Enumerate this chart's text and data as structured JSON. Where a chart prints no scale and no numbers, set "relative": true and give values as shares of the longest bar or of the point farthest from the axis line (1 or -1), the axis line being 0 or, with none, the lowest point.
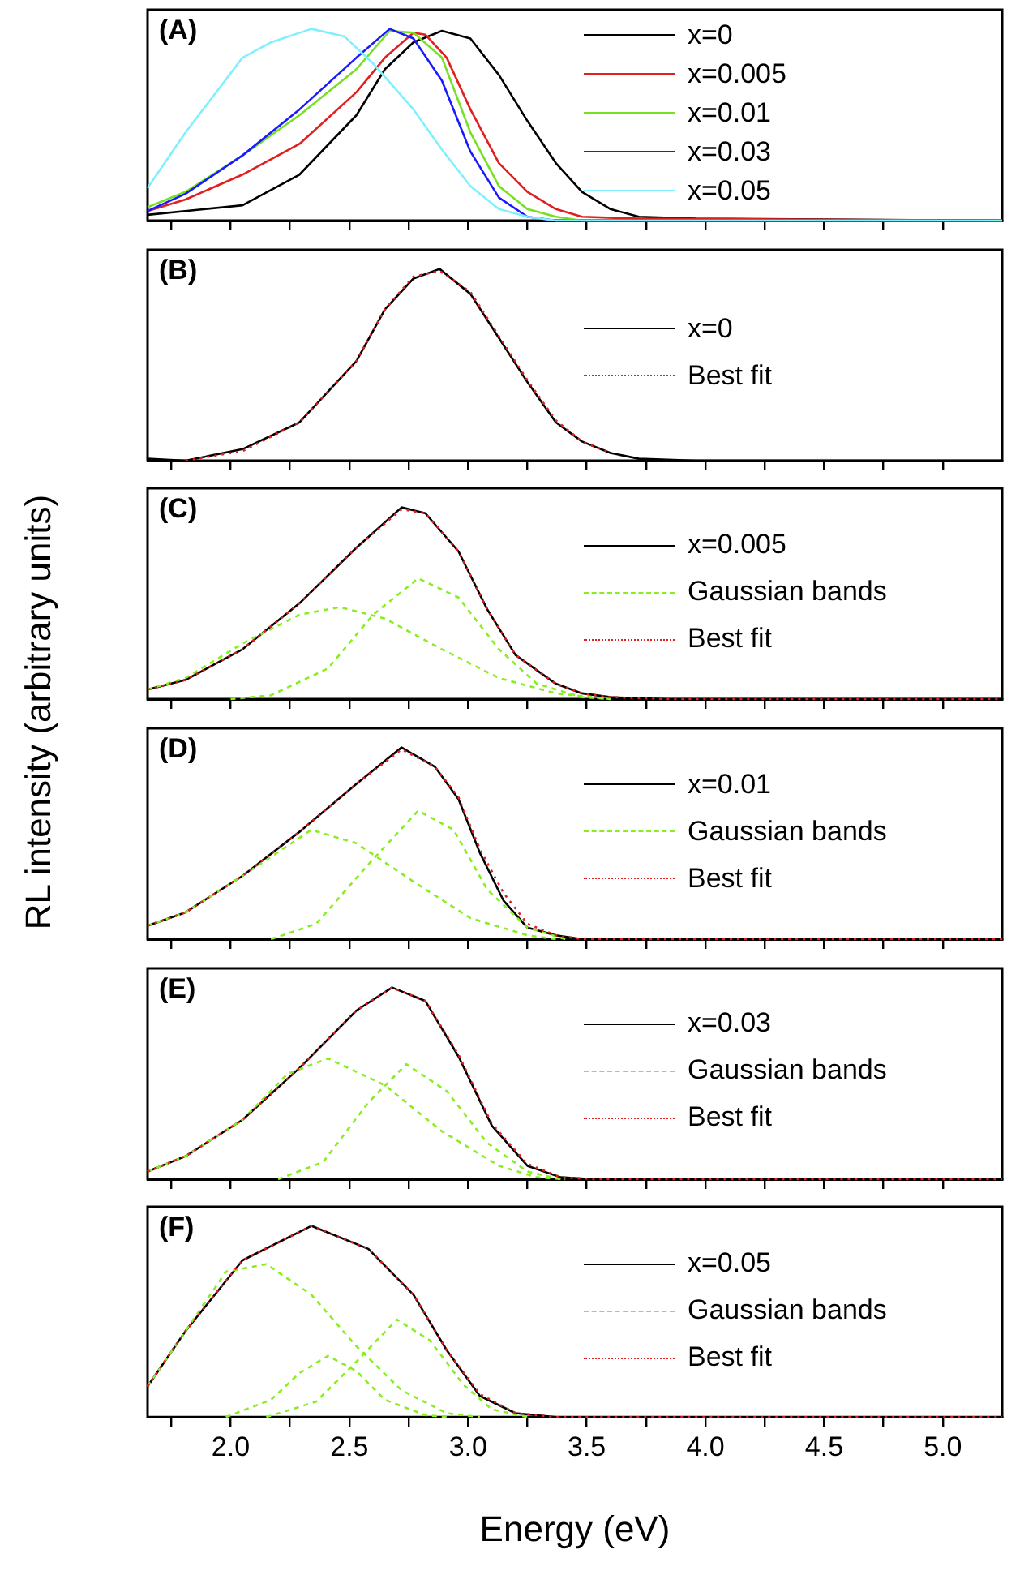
{
  "chart_data": [
    {
      "type": "line",
      "title": "(A)",
      "relative": true,
      "legend": "top right",
      "tick_labels": false,
      "xlim": [
        1.65,
        5.25
      ],
      "xticks": [
        1.75,
        2,
        2.25,
        2.5,
        2.75,
        3,
        3.25,
        3.5,
        3.75,
        4,
        4.25,
        4.5,
        4.75,
        5
      ],
      "series": [
        {
          "name": "x=0",
          "color": "#000000",
          "x": [
            1.65,
            2.05,
            2.29,
            2.53,
            2.65,
            2.77,
            2.89,
            3.01,
            3.13,
            3.25,
            3.37,
            3.48,
            3.6,
            3.72,
            3.96,
            5.25
          ],
          "values": [
            0.03,
            0.08,
            0.24,
            0.55,
            0.79,
            0.93,
            0.99,
            0.95,
            0.76,
            0.52,
            0.3,
            0.15,
            0.06,
            0.02,
            0.01,
            0
          ]
        },
        {
          "name": "x=0.005",
          "color": "#e02020",
          "x": [
            1.65,
            1.81,
            2.05,
            2.29,
            2.53,
            2.65,
            2.77,
            2.82,
            2.91,
            3.01,
            3.13,
            3.25,
            3.37,
            3.48,
            3.72,
            5.25
          ],
          "values": [
            0.05,
            0.11,
            0.24,
            0.4,
            0.67,
            0.85,
            0.98,
            0.97,
            0.85,
            0.58,
            0.3,
            0.15,
            0.06,
            0.02,
            0.01,
            0
          ]
        },
        {
          "name": "x=0.01",
          "color": "#77e020",
          "x": [
            1.65,
            1.81,
            2.05,
            2.29,
            2.53,
            2.67,
            2.77,
            2.89,
            3.01,
            3.13,
            3.25,
            3.37,
            3.48,
            5.25
          ],
          "values": [
            0.07,
            0.15,
            0.34,
            0.55,
            0.79,
            0.99,
            0.98,
            0.85,
            0.46,
            0.18,
            0.06,
            0.02,
            0,
            0
          ]
        },
        {
          "name": "x=0.03",
          "color": "#1a1aff",
          "x": [
            1.65,
            1.81,
            2.05,
            2.29,
            2.53,
            2.67,
            2.77,
            2.89,
            3.01,
            3.13,
            3.25,
            3.37,
            5.25
          ],
          "values": [
            0.05,
            0.14,
            0.34,
            0.58,
            0.85,
            1,
            0.95,
            0.73,
            0.36,
            0.12,
            0.02,
            0,
            0
          ]
        },
        {
          "name": "x=0.05",
          "color": "#80f0ff",
          "x": [
            1.65,
            1.81,
            2.05,
            2.17,
            2.34,
            2.48,
            2.6,
            2.77,
            2.89,
            3.01,
            3.13,
            3.25,
            3.37,
            5.25
          ],
          "values": [
            0.17,
            0.46,
            0.85,
            0.93,
            1,
            0.96,
            0.82,
            0.58,
            0.37,
            0.18,
            0.06,
            0.02,
            0,
            0
          ]
        }
      ]
    },
    {
      "type": "line",
      "title": "(B)",
      "relative": true,
      "legend": "right",
      "tick_labels": false,
      "xlim": [
        1.65,
        5.25
      ],
      "xticks": [
        1.75,
        2,
        2.25,
        2.5,
        2.75,
        3,
        3.25,
        3.5,
        3.75,
        4,
        4.25,
        4.5,
        4.75,
        5
      ],
      "series": [
        {
          "name": "x=0",
          "color": "#000000",
          "x": [
            1.65,
            1.81,
            2.05,
            2.29,
            2.53,
            2.65,
            2.77,
            2.88,
            3.01,
            3.13,
            3.25,
            3.37,
            3.48,
            3.6,
            3.72,
            3.96,
            5.25
          ],
          "values": [
            0.01,
            0,
            0.06,
            0.2,
            0.52,
            0.79,
            0.95,
            1,
            0.87,
            0.64,
            0.41,
            0.2,
            0.1,
            0.04,
            0.01,
            0,
            0
          ]
        },
        {
          "name": "Best fit",
          "color": "#e02020",
          "line_style": "dotted",
          "x": [
            1.81,
            2.05,
            2.29,
            2.53,
            2.65,
            2.77,
            2.88,
            3.01,
            3.13,
            3.25,
            3.37,
            3.48,
            3.6
          ],
          "values": [
            0,
            0.05,
            0.2,
            0.52,
            0.79,
            0.96,
            0.99,
            0.88,
            0.65,
            0.42,
            0.21,
            0.1,
            0.04
          ]
        }
      ]
    },
    {
      "type": "line",
      "title": "(C)",
      "relative": true,
      "legend": "right",
      "tick_labels": false,
      "xlim": [
        1.65,
        5.25
      ],
      "xticks": [
        1.75,
        2,
        2.25,
        2.5,
        2.75,
        3,
        3.25,
        3.5,
        3.75,
        4,
        4.25,
        4.5,
        4.75,
        5
      ],
      "series": [
        {
          "name": "x=0.005",
          "color": "#000000",
          "x": [
            1.65,
            1.81,
            2.05,
            2.29,
            2.53,
            2.72,
            2.82,
            2.96,
            3.08,
            3.2,
            3.37,
            3.48,
            3.6,
            3.84,
            5.25
          ],
          "values": [
            0.05,
            0.1,
            0.26,
            0.5,
            0.79,
            1,
            0.97,
            0.77,
            0.47,
            0.23,
            0.08,
            0.03,
            0.01,
            0,
            0
          ]
        },
        {
          "name": "Gaussian bands",
          "color": "#88ee22",
          "line_style": "dashed",
          "x": [
            1.65,
            1.81,
            2.05,
            2.29,
            2.46,
            2.65,
            2.89,
            3.13,
            3.37,
            3.6
          ],
          "values": [
            0.05,
            0.11,
            0.29,
            0.44,
            0.48,
            0.42,
            0.26,
            0.11,
            0.03,
            0
          ]
        },
        {
          "color": "#88ee22",
          "line_style": "dashed",
          "x": [
            2.0,
            2.17,
            2.41,
            2.6,
            2.79,
            2.96,
            3.13,
            3.29,
            3.48,
            3.6
          ],
          "values": [
            0,
            0.02,
            0.16,
            0.44,
            0.63,
            0.53,
            0.26,
            0.08,
            0.01,
            0
          ]
        },
        {
          "name": "Best fit",
          "color": "#e02020",
          "line_style": "dotted",
          "x": [
            1.65,
            1.81,
            2.05,
            2.29,
            2.53,
            2.72,
            2.82,
            2.96,
            3.08,
            3.2,
            3.37,
            3.48,
            3.6,
            3.84,
            5.25
          ],
          "values": [
            0.05,
            0.1,
            0.26,
            0.5,
            0.79,
            0.99,
            0.97,
            0.77,
            0.47,
            0.23,
            0.08,
            0.03,
            0.01,
            0,
            0
          ]
        }
      ]
    },
    {
      "type": "line",
      "title": "(D)",
      "ylabel": "RL intensity (arbitrary units)",
      "relative": true,
      "legend": "right",
      "tick_labels": false,
      "xlim": [
        1.65,
        5.25
      ],
      "xticks": [
        1.75,
        2,
        2.25,
        2.5,
        2.75,
        3,
        3.25,
        3.5,
        3.75,
        4,
        4.25,
        4.5,
        4.75,
        5
      ],
      "series": [
        {
          "name": "x=0.01",
          "color": "#000000",
          "x": [
            1.65,
            1.81,
            2.05,
            2.29,
            2.53,
            2.72,
            2.86,
            2.96,
            3.05,
            3.15,
            3.25,
            3.37,
            3.48,
            5.25
          ],
          "values": [
            0.07,
            0.14,
            0.33,
            0.56,
            0.81,
            1,
            0.9,
            0.73,
            0.45,
            0.2,
            0.06,
            0.02,
            0,
            0
          ]
        },
        {
          "name": "Gaussian bands",
          "color": "#88ee22",
          "line_style": "dashed",
          "x": [
            1.65,
            1.81,
            2.05,
            2.34,
            2.53,
            2.77,
            3.01,
            3.25,
            3.37
          ],
          "values": [
            0.07,
            0.14,
            0.33,
            0.57,
            0.5,
            0.3,
            0.11,
            0.02,
            0
          ]
        },
        {
          "color": "#88ee22",
          "line_style": "dashed",
          "x": [
            2.17,
            2.36,
            2.58,
            2.79,
            2.94,
            3.08,
            3.25,
            3.41
          ],
          "values": [
            0,
            0.08,
            0.39,
            0.67,
            0.57,
            0.26,
            0.06,
            0
          ]
        },
        {
          "name": "Best fit",
          "color": "#e02020",
          "line_style": "dotted",
          "x": [
            1.65,
            1.81,
            2.05,
            2.29,
            2.53,
            2.72,
            2.86,
            2.96,
            3.05,
            3.15,
            3.25,
            3.37,
            3.48,
            5.25
          ],
          "values": [
            0.07,
            0.14,
            0.33,
            0.56,
            0.81,
            0.99,
            0.9,
            0.74,
            0.47,
            0.24,
            0.08,
            0.02,
            0,
            0
          ]
        }
      ]
    },
    {
      "type": "line",
      "title": "(E)",
      "relative": true,
      "legend": "right",
      "tick_labels": false,
      "xlim": [
        1.65,
        5.25
      ],
      "xticks": [
        1.75,
        2,
        2.25,
        2.5,
        2.75,
        3,
        3.25,
        3.5,
        3.75,
        4,
        4.25,
        4.5,
        4.75,
        5
      ],
      "series": [
        {
          "name": "x=0.03",
          "color": "#000000",
          "x": [
            1.65,
            1.81,
            2.05,
            2.29,
            2.53,
            2.68,
            2.82,
            2.96,
            3.1,
            3.25,
            3.39,
            3.53,
            5.25
          ],
          "values": [
            0.04,
            0.12,
            0.31,
            0.58,
            0.88,
            1,
            0.93,
            0.64,
            0.28,
            0.07,
            0.01,
            0,
            0
          ]
        },
        {
          "name": "Gaussian bands",
          "color": "#88ee22",
          "line_style": "dashed",
          "x": [
            1.65,
            1.81,
            2.05,
            2.24,
            2.41,
            2.65,
            2.89,
            3.13,
            3.29,
            3.41
          ],
          "values": [
            0.04,
            0.12,
            0.31,
            0.55,
            0.63,
            0.49,
            0.25,
            0.07,
            0.01,
            0
          ]
        },
        {
          "color": "#88ee22",
          "line_style": "dashed",
          "x": [
            2.2,
            2.39,
            2.58,
            2.74,
            2.91,
            3.08,
            3.25,
            3.39
          ],
          "values": [
            0,
            0.09,
            0.4,
            0.6,
            0.46,
            0.19,
            0.04,
            0
          ]
        },
        {
          "name": "Best fit",
          "color": "#e02020",
          "line_style": "dotted",
          "x": [
            1.65,
            1.81,
            2.05,
            2.29,
            2.53,
            2.68,
            2.82,
            2.96,
            3.1,
            3.25,
            3.39,
            3.53,
            5.25
          ],
          "values": [
            0.04,
            0.12,
            0.31,
            0.58,
            0.88,
            1,
            0.93,
            0.65,
            0.29,
            0.08,
            0.01,
            0,
            0
          ]
        }
      ]
    },
    {
      "type": "line",
      "title": "(F)",
      "xlabel": "Energy (eV)",
      "relative": true,
      "legend": "right",
      "tick_labels": "x",
      "xlim": [
        1.65,
        5.25
      ],
      "xticks": [
        {
          "value": 1.75,
          "label": null
        },
        {
          "value": 2,
          "label": "2.0"
        },
        {
          "value": 2.25,
          "label": null
        },
        {
          "value": 2.5,
          "label": "2.5"
        },
        {
          "value": 2.75,
          "label": null
        },
        {
          "value": 3,
          "label": "3.0"
        },
        {
          "value": 3.25,
          "label": null
        },
        {
          "value": 3.5,
          "label": "3.5"
        },
        {
          "value": 3.75,
          "label": null
        },
        {
          "value": 4,
          "label": "4.0"
        },
        {
          "value": 4.25,
          "label": null
        },
        {
          "value": 4.5,
          "label": "4.5"
        },
        {
          "value": 4.75,
          "label": null
        },
        {
          "value": 5,
          "label": "5.0"
        }
      ],
      "series": [
        {
          "name": "x=0.05",
          "color": "#000000",
          "x": [
            1.65,
            1.81,
            2.05,
            2.34,
            2.58,
            2.77,
            2.91,
            3.05,
            3.2,
            3.37,
            5.25
          ],
          "values": [
            0.16,
            0.45,
            0.82,
            1,
            0.88,
            0.64,
            0.35,
            0.11,
            0.02,
            0,
            0
          ]
        },
        {
          "name": "Gaussian bands",
          "color": "#88ee22",
          "line_style": "dashed",
          "x": [
            1.65,
            1.81,
            1.98,
            2.15,
            2.34,
            2.53,
            2.72,
            2.91,
            3.05
          ],
          "values": [
            0.16,
            0.45,
            0.76,
            0.8,
            0.64,
            0.37,
            0.14,
            0.02,
            0
          ]
        },
        {
          "color": "#88ee22",
          "line_style": "dashed",
          "x": [
            1.98,
            2.17,
            2.29,
            2.41,
            2.53,
            2.65,
            2.82,
            2.91
          ],
          "values": [
            0,
            0.09,
            0.23,
            0.32,
            0.24,
            0.09,
            0.01,
            0
          ]
        },
        {
          "color": "#88ee22",
          "line_style": "dashed",
          "x": [
            2.15,
            2.36,
            2.53,
            2.7,
            2.84,
            2.98,
            3.1,
            3.25
          ],
          "values": [
            0,
            0.08,
            0.29,
            0.51,
            0.4,
            0.17,
            0.04,
            0
          ]
        },
        {
          "name": "Best fit",
          "color": "#e02020",
          "line_style": "dotted",
          "x": [
            1.65,
            1.81,
            2.05,
            2.34,
            2.58,
            2.77,
            2.91,
            3.05,
            3.2,
            3.37,
            5.25
          ],
          "values": [
            0.16,
            0.45,
            0.82,
            1,
            0.88,
            0.64,
            0.35,
            0.12,
            0.02,
            0,
            0
          ]
        }
      ]
    }
  ]
}
